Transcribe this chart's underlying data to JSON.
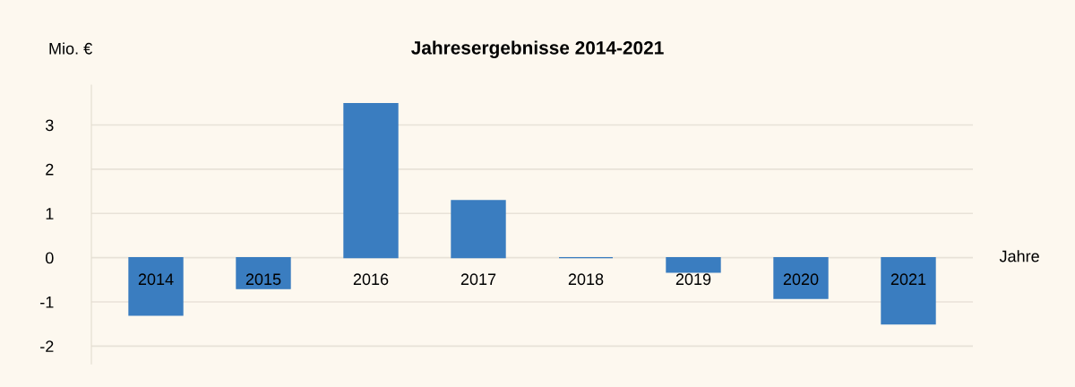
{
  "chart_data": {
    "type": "bar",
    "title": "Jahresergebnisse 2014-2021",
    "ylabel": "Mio. €",
    "xlabel": "Jahre",
    "categories": [
      "2014",
      "2015",
      "2016",
      "2017",
      "2018",
      "2019",
      "2020",
      "2021"
    ],
    "values": [
      -1.3,
      -0.7,
      3.48,
      1.29,
      0,
      -0.33,
      -0.92,
      -1.5
    ],
    "color": "#3a7dc0",
    "ylim": [
      -2.4,
      3.9
    ],
    "yticks": [
      -2,
      -1,
      0,
      1,
      2,
      3
    ],
    "grid": "y",
    "legend": false
  }
}
